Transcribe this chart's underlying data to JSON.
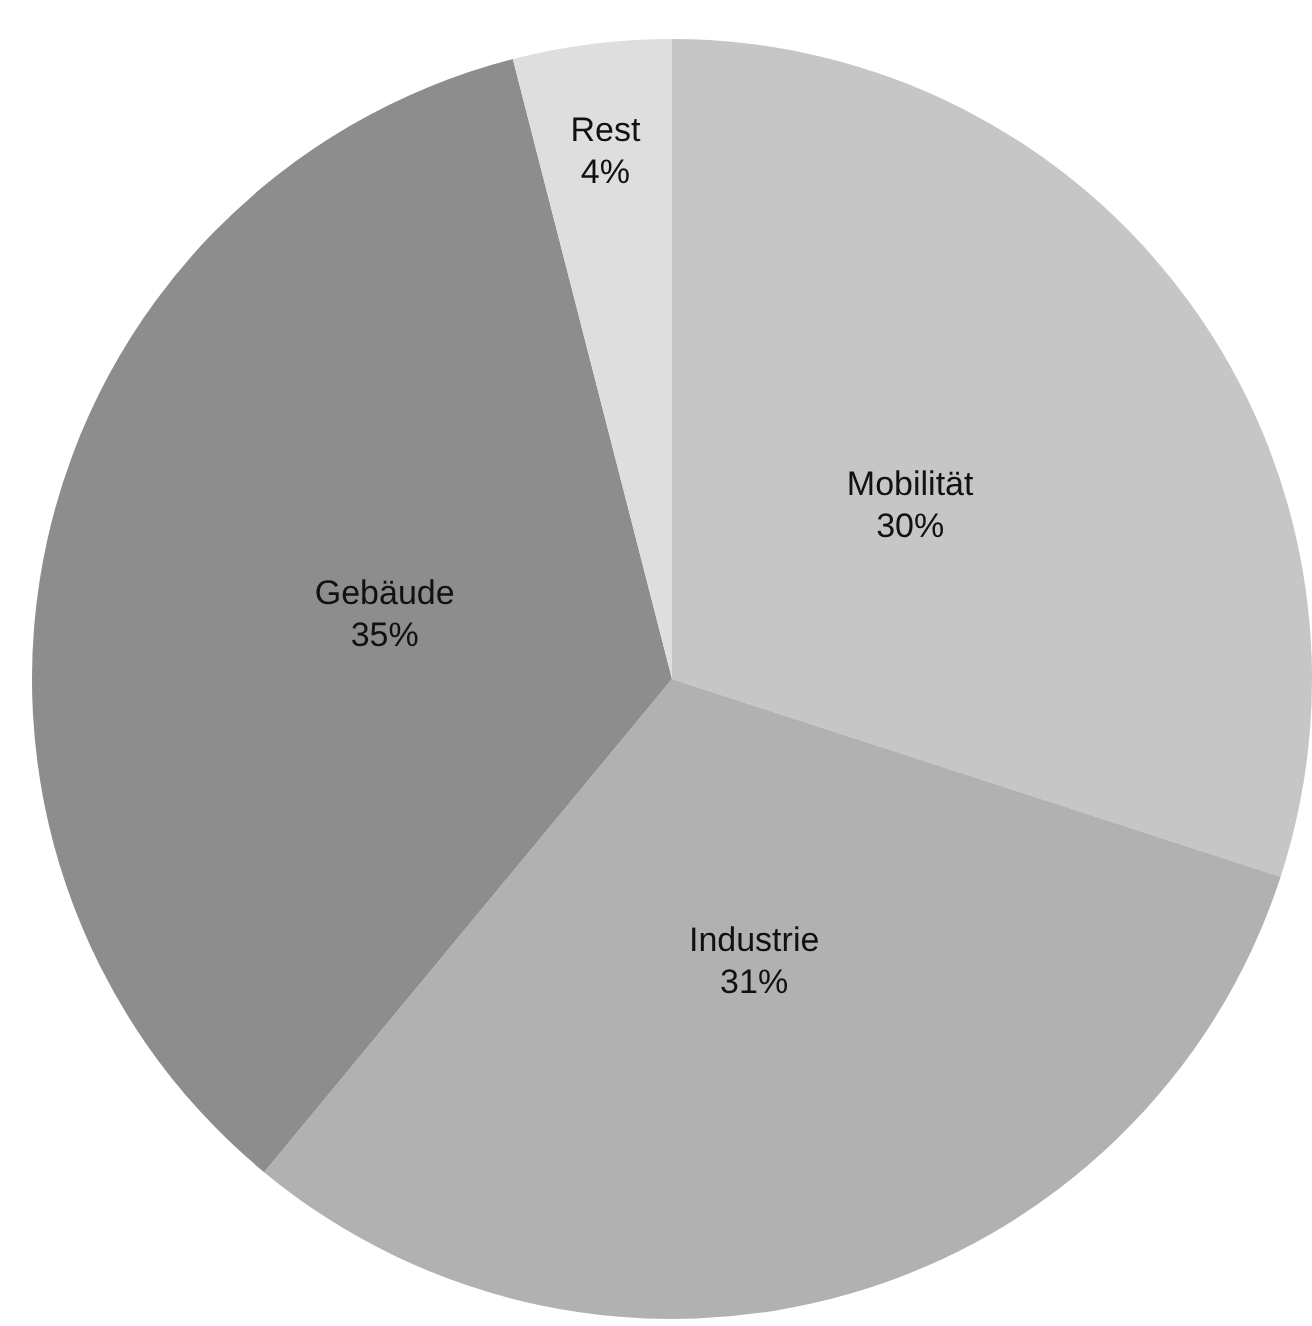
{
  "chart_data": {
    "type": "pie",
    "categories": [
      "Mobilität",
      "Industrie",
      "Gebäude",
      "Rest"
    ],
    "values": [
      30,
      31,
      35,
      4
    ],
    "colors": [
      "#c6c6c6",
      "#b1b1b1",
      "#8d8d8d",
      "#dedede"
    ],
    "value_labels": [
      "30%",
      "31%",
      "35%",
      "4%"
    ],
    "legend": false
  }
}
